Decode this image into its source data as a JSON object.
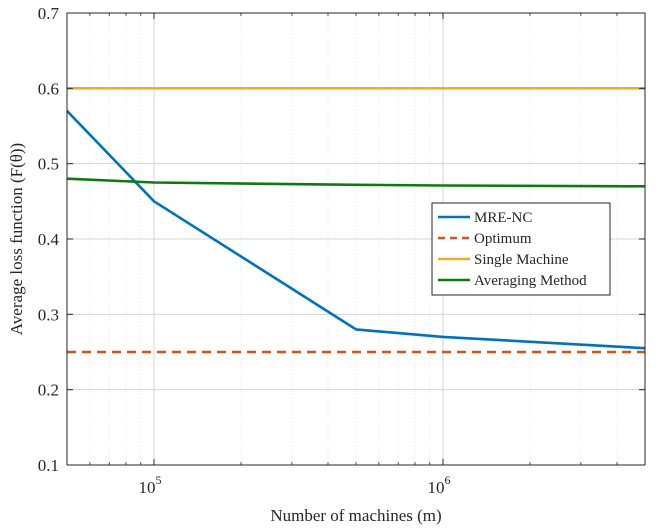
{
  "chart_data": {
    "type": "line",
    "xlabel": "Number of machines (m)",
    "ylabel": "Average loss function (F(θ))",
    "xscale": "log",
    "xlim": [
      50000,
      5000000
    ],
    "ylim": [
      0.1,
      0.7
    ],
    "xticks": [
      {
        "value": 100000,
        "base": "10",
        "exp": "5"
      },
      {
        "value": 1000000,
        "base": "10",
        "exp": "6"
      }
    ],
    "yticks": [
      "0.1",
      "0.2",
      "0.3",
      "0.4",
      "0.5",
      "0.6",
      "0.7"
    ],
    "grid": true,
    "legend_position": "right",
    "series": [
      {
        "name": "MRE-NC",
        "color": "#0072BD",
        "dash": "solid",
        "x": [
          50000,
          100000,
          500000,
          1000000,
          5000000
        ],
        "y": [
          0.57,
          0.45,
          0.28,
          0.27,
          0.255
        ]
      },
      {
        "name": "Optimum",
        "color": "#D95319",
        "dash": "dashed",
        "x": [
          50000,
          5000000
        ],
        "y": [
          0.25,
          0.25
        ]
      },
      {
        "name": "Single Machine",
        "color": "#EDB120",
        "dash": "solid",
        "x": [
          50000,
          5000000
        ],
        "y": [
          0.6,
          0.6
        ]
      },
      {
        "name": "Averaging Method",
        "color": "#0E7A0E",
        "dash": "solid",
        "x": [
          50000,
          100000,
          500000,
          1000000,
          5000000
        ],
        "y": [
          0.48,
          0.475,
          0.472,
          0.471,
          0.47
        ]
      }
    ]
  }
}
